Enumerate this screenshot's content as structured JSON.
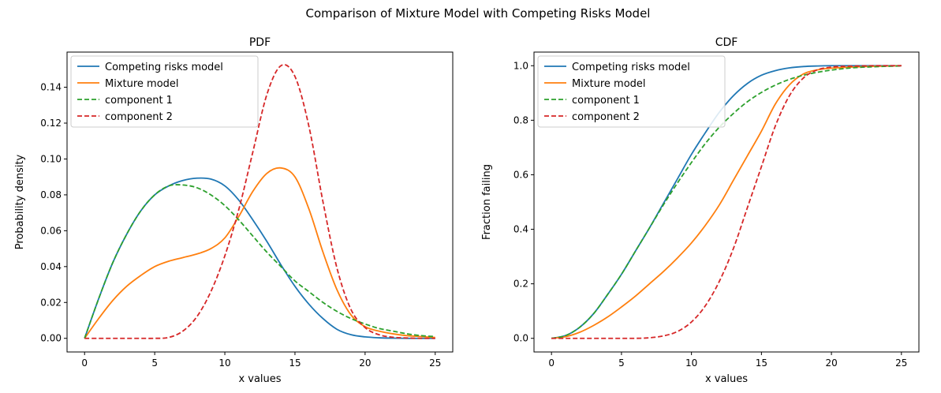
{
  "suptitle": "Comparison of Mixture Model with Competing Risks Model",
  "chart_data": [
    {
      "type": "line",
      "title": "PDF",
      "xlabel": "x values",
      "ylabel": "Probability density",
      "xlim": [
        -1.25,
        26.25
      ],
      "ylim": [
        -0.0076,
        0.1596
      ],
      "xticks": [
        0,
        5,
        10,
        15,
        20,
        25
      ],
      "xtick_labels": [
        "0",
        "5",
        "10",
        "15",
        "20",
        "25"
      ],
      "yticks": [
        0.0,
        0.02,
        0.04,
        0.06,
        0.08,
        0.1,
        0.12,
        0.14
      ],
      "ytick_labels": [
        "0.00",
        "0.02",
        "0.04",
        "0.06",
        "0.08",
        "0.10",
        "0.12",
        "0.14"
      ],
      "grid": false,
      "legend": "top-left",
      "x": [
        0,
        1,
        2,
        3,
        4,
        5,
        6,
        7,
        8,
        9,
        10,
        11,
        12,
        13,
        14,
        15,
        16,
        17,
        18,
        19,
        20,
        21,
        22,
        23,
        24,
        25
      ],
      "series": [
        {
          "name": "Competing risks model",
          "color": "#1f77b4",
          "dash": "solid",
          "values": [
            0.0,
            0.022,
            0.042,
            0.058,
            0.071,
            0.08,
            0.085,
            0.088,
            0.0893,
            0.0888,
            0.085,
            0.077,
            0.066,
            0.054,
            0.041,
            0.029,
            0.019,
            0.011,
            0.005,
            0.002,
            0.0008,
            0.0003,
            0.0001,
            0.0,
            0.0,
            0.0
          ]
        },
        {
          "name": "Mixture model",
          "color": "#ff7f0e",
          "dash": "solid",
          "values": [
            0.0,
            0.011,
            0.021,
            0.029,
            0.035,
            0.04,
            0.043,
            0.045,
            0.047,
            0.05,
            0.056,
            0.068,
            0.082,
            0.092,
            0.095,
            0.09,
            0.072,
            0.048,
            0.027,
            0.013,
            0.0065,
            0.004,
            0.0025,
            0.0015,
            0.001,
            0.0005
          ]
        },
        {
          "name": "component 1",
          "color": "#2ca02c",
          "dash": "dashed",
          "values": [
            0.0,
            0.022,
            0.042,
            0.058,
            0.071,
            0.08,
            0.085,
            0.0855,
            0.084,
            0.08,
            0.074,
            0.066,
            0.057,
            0.048,
            0.04,
            0.032,
            0.026,
            0.02,
            0.015,
            0.011,
            0.008,
            0.0055,
            0.004,
            0.0025,
            0.0015,
            0.001
          ]
        },
        {
          "name": "component 2",
          "color": "#d62728",
          "dash": "dashed",
          "values": [
            0.0,
            0.0,
            0.0,
            0.0,
            0.0,
            0.0,
            0.0005,
            0.004,
            0.012,
            0.026,
            0.046,
            0.072,
            0.104,
            0.136,
            0.152,
            0.146,
            0.118,
            0.076,
            0.039,
            0.016,
            0.006,
            0.002,
            0.0006,
            0.0002,
            0.0,
            0.0
          ]
        }
      ]
    },
    {
      "type": "line",
      "title": "CDF",
      "xlabel": "x values",
      "ylabel": "Fraction failing",
      "xlim": [
        -1.25,
        26.25
      ],
      "ylim": [
        -0.05,
        1.05
      ],
      "xticks": [
        0,
        5,
        10,
        15,
        20,
        25
      ],
      "xtick_labels": [
        "0",
        "5",
        "10",
        "15",
        "20",
        "25"
      ],
      "yticks": [
        0.0,
        0.2,
        0.4,
        0.6,
        0.8,
        1.0
      ],
      "ytick_labels": [
        "0.0",
        "0.2",
        "0.4",
        "0.6",
        "0.8",
        "1.0"
      ],
      "grid": false,
      "legend": "top-left",
      "x": [
        0,
        1,
        2,
        3,
        4,
        5,
        6,
        7,
        8,
        9,
        10,
        11,
        12,
        13,
        14,
        15,
        16,
        17,
        18,
        19,
        20,
        21,
        22,
        23,
        24,
        25
      ],
      "series": [
        {
          "name": "Competing risks model",
          "color": "#1f77b4",
          "dash": "solid",
          "values": [
            0.0,
            0.01,
            0.04,
            0.09,
            0.16,
            0.235,
            0.32,
            0.405,
            0.495,
            0.585,
            0.675,
            0.755,
            0.83,
            0.89,
            0.935,
            0.965,
            0.982,
            0.992,
            0.997,
            0.999,
            1.0,
            1.0,
            1.0,
            1.0,
            1.0,
            1.0
          ]
        },
        {
          "name": "Mixture model",
          "color": "#ff7f0e",
          "dash": "solid",
          "values": [
            0.0,
            0.006,
            0.022,
            0.047,
            0.078,
            0.115,
            0.155,
            0.2,
            0.245,
            0.295,
            0.35,
            0.415,
            0.49,
            0.58,
            0.67,
            0.76,
            0.86,
            0.93,
            0.97,
            0.985,
            0.991,
            0.994,
            0.996,
            0.998,
            0.999,
            1.0
          ]
        },
        {
          "name": "component 1",
          "color": "#2ca02c",
          "dash": "dashed",
          "values": [
            0.0,
            0.01,
            0.04,
            0.09,
            0.16,
            0.235,
            0.32,
            0.405,
            0.49,
            0.57,
            0.645,
            0.715,
            0.775,
            0.825,
            0.868,
            0.902,
            0.929,
            0.95,
            0.965,
            0.976,
            0.984,
            0.99,
            0.994,
            0.996,
            0.998,
            0.999
          ]
        },
        {
          "name": "component 2",
          "color": "#d62728",
          "dash": "dashed",
          "values": [
            0.0,
            0.0,
            0.0,
            0.0,
            0.0,
            0.0,
            0.0,
            0.002,
            0.009,
            0.025,
            0.06,
            0.12,
            0.21,
            0.33,
            0.48,
            0.63,
            0.78,
            0.89,
            0.955,
            0.985,
            0.995,
            0.998,
            0.999,
            1.0,
            1.0,
            1.0
          ]
        }
      ]
    }
  ]
}
